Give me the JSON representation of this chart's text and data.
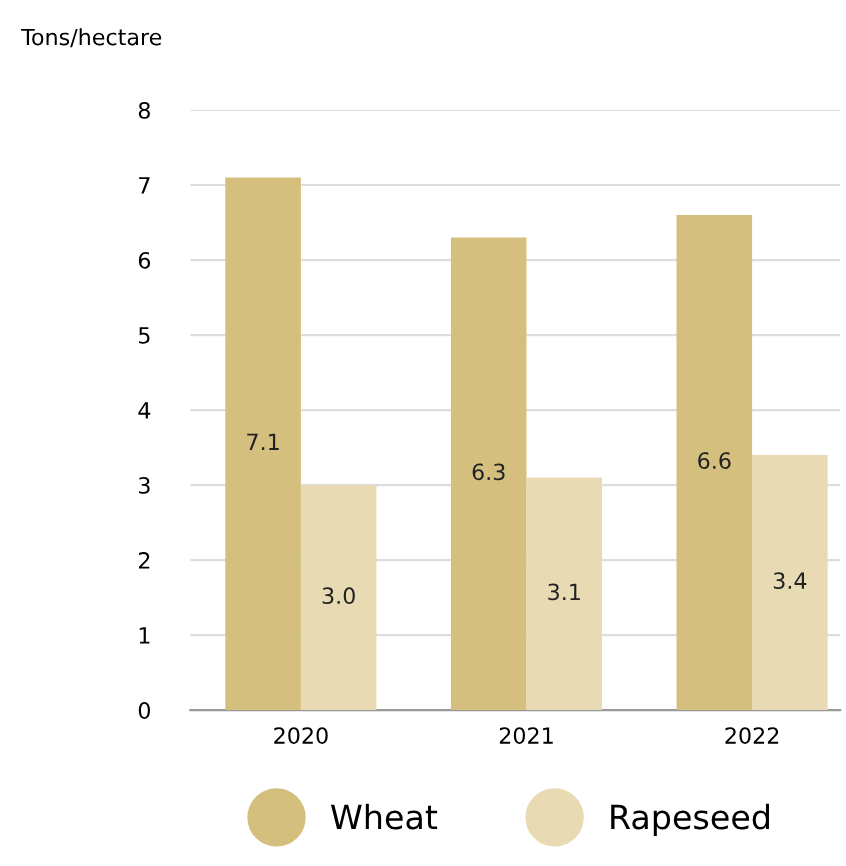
{
  "chart_data": {
    "type": "bar",
    "ylabel": "Tons/hectare",
    "categories": [
      "2020",
      "2021",
      "2022"
    ],
    "series": [
      {
        "name": "Wheat",
        "color": "#d4bf7e",
        "values": [
          7.1,
          6.3,
          6.6
        ],
        "value_labels": [
          "7.1",
          "6.3",
          "6.6"
        ]
      },
      {
        "name": "Rapeseed",
        "color": "#e8dab3",
        "values": [
          3.0,
          3.1,
          3.4
        ],
        "value_labels": [
          "3.0",
          "3.1",
          "3.4"
        ]
      }
    ],
    "ylim": [
      0,
      8
    ],
    "yticks": [
      0,
      1,
      2,
      3,
      4,
      5,
      6,
      7,
      8
    ],
    "grid": "y",
    "legend": "bottom"
  }
}
